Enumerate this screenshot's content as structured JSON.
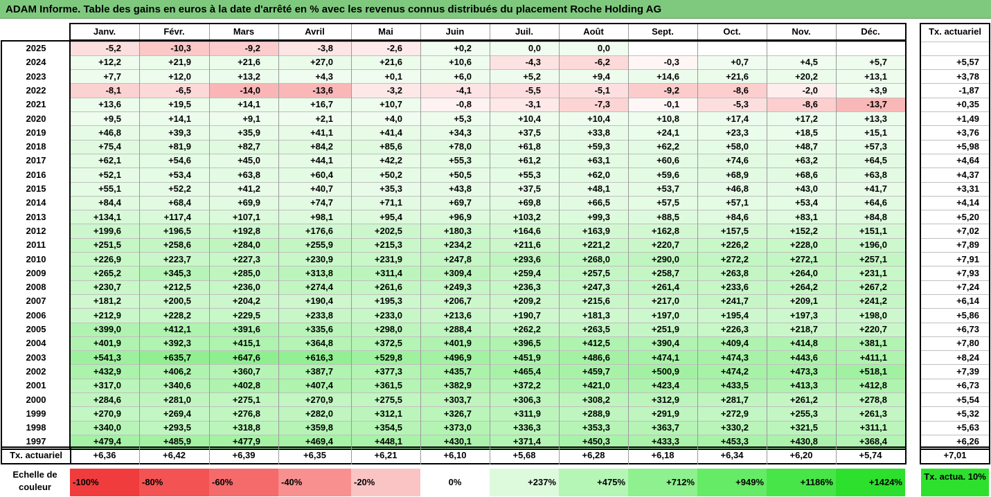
{
  "title": "ADAM Informe. Table des gains en euros à la date d'arrêté en % avec les revenus connus distribués du placement Roche Holding AG",
  "months": [
    "Janv.",
    "Févr.",
    "Mars",
    "Avril",
    "Mai",
    "Juin",
    "Juil.",
    "Août",
    "Sept.",
    "Oct.",
    "Nov.",
    "Déc."
  ],
  "tx_header": "Tx. actuariel",
  "rows": [
    {
      "year": "2025",
      "values": [
        "-5,2",
        "-10,3",
        "-9,2",
        "-3,8",
        "-2,6",
        "+0,2",
        "0,0",
        "0,0",
        "",
        "",
        "",
        ""
      ],
      "tx": ""
    },
    {
      "year": "2024",
      "values": [
        "+12,2",
        "+21,9",
        "+21,6",
        "+27,0",
        "+21,6",
        "+10,6",
        "-4,3",
        "-6,2",
        "-0,3",
        "+0,7",
        "+4,5",
        "+5,7"
      ],
      "tx": "+5,57"
    },
    {
      "year": "2023",
      "values": [
        "+7,7",
        "+12,0",
        "+13,2",
        "+4,3",
        "+0,1",
        "+6,0",
        "+5,2",
        "+9,4",
        "+14,6",
        "+21,6",
        "+20,2",
        "+13,1"
      ],
      "tx": "+3,78"
    },
    {
      "year": "2022",
      "values": [
        "-8,1",
        "-6,5",
        "-14,0",
        "-13,6",
        "-3,2",
        "-4,1",
        "-5,5",
        "-5,1",
        "-9,2",
        "-8,6",
        "-2,0",
        "+3,9"
      ],
      "tx": "-1,87"
    },
    {
      "year": "2021",
      "values": [
        "+13,6",
        "+19,5",
        "+14,1",
        "+16,7",
        "+10,7",
        "-0,8",
        "-3,1",
        "-7,3",
        "-0,1",
        "-5,3",
        "-8,6",
        "-13,7"
      ],
      "tx": "+0,35"
    },
    {
      "year": "2020",
      "values": [
        "+9,5",
        "+14,1",
        "+9,1",
        "+2,1",
        "+4,0",
        "+5,3",
        "+10,4",
        "+10,4",
        "+10,8",
        "+17,4",
        "+17,2",
        "+13,3"
      ],
      "tx": "+1,49"
    },
    {
      "year": "2019",
      "values": [
        "+46,8",
        "+39,3",
        "+35,9",
        "+41,1",
        "+41,4",
        "+34,3",
        "+37,5",
        "+33,8",
        "+24,1",
        "+23,3",
        "+18,5",
        "+15,1"
      ],
      "tx": "+3,76"
    },
    {
      "year": "2018",
      "values": [
        "+75,4",
        "+81,9",
        "+82,7",
        "+84,2",
        "+85,6",
        "+78,0",
        "+61,8",
        "+59,3",
        "+62,2",
        "+58,0",
        "+48,7",
        "+57,3"
      ],
      "tx": "+5,98"
    },
    {
      "year": "2017",
      "values": [
        "+62,1",
        "+54,6",
        "+45,0",
        "+44,1",
        "+42,2",
        "+55,3",
        "+61,2",
        "+63,1",
        "+60,6",
        "+74,6",
        "+63,2",
        "+64,5"
      ],
      "tx": "+4,64"
    },
    {
      "year": "2016",
      "values": [
        "+52,1",
        "+53,4",
        "+63,8",
        "+60,4",
        "+50,2",
        "+50,5",
        "+55,3",
        "+62,0",
        "+59,6",
        "+68,9",
        "+68,6",
        "+63,8"
      ],
      "tx": "+4,37"
    },
    {
      "year": "2015",
      "values": [
        "+55,1",
        "+52,2",
        "+41,2",
        "+40,7",
        "+35,3",
        "+43,8",
        "+37,5",
        "+48,1",
        "+53,7",
        "+46,8",
        "+43,0",
        "+41,7"
      ],
      "tx": "+3,31"
    },
    {
      "year": "2014",
      "values": [
        "+84,4",
        "+68,4",
        "+69,9",
        "+74,7",
        "+71,1",
        "+69,7",
        "+69,8",
        "+66,5",
        "+57,5",
        "+57,1",
        "+53,4",
        "+64,6"
      ],
      "tx": "+4,14"
    },
    {
      "year": "2013",
      "values": [
        "+134,1",
        "+117,4",
        "+107,1",
        "+98,1",
        "+95,4",
        "+96,9",
        "+103,2",
        "+99,3",
        "+88,5",
        "+84,6",
        "+83,1",
        "+84,8"
      ],
      "tx": "+5,20"
    },
    {
      "year": "2012",
      "values": [
        "+199,6",
        "+196,5",
        "+192,8",
        "+176,6",
        "+202,5",
        "+180,3",
        "+164,6",
        "+163,9",
        "+162,8",
        "+157,5",
        "+152,2",
        "+151,1"
      ],
      "tx": "+7,02"
    },
    {
      "year": "2011",
      "values": [
        "+251,5",
        "+258,6",
        "+284,0",
        "+255,9",
        "+215,3",
        "+234,2",
        "+211,6",
        "+221,2",
        "+220,7",
        "+226,2",
        "+228,0",
        "+196,0"
      ],
      "tx": "+7,89"
    },
    {
      "year": "2010",
      "values": [
        "+226,9",
        "+223,7",
        "+227,3",
        "+230,9",
        "+231,9",
        "+247,8",
        "+293,6",
        "+268,0",
        "+290,0",
        "+272,2",
        "+272,1",
        "+257,1"
      ],
      "tx": "+7,91"
    },
    {
      "year": "2009",
      "values": [
        "+265,2",
        "+345,3",
        "+285,0",
        "+313,8",
        "+311,4",
        "+309,4",
        "+259,4",
        "+257,5",
        "+258,7",
        "+263,8",
        "+264,0",
        "+231,1"
      ],
      "tx": "+7,93"
    },
    {
      "year": "2008",
      "values": [
        "+230,7",
        "+212,5",
        "+236,0",
        "+274,4",
        "+261,6",
        "+249,3",
        "+236,3",
        "+247,3",
        "+261,4",
        "+233,6",
        "+264,2",
        "+267,2"
      ],
      "tx": "+7,24"
    },
    {
      "year": "2007",
      "values": [
        "+181,2",
        "+200,5",
        "+204,2",
        "+190,4",
        "+195,3",
        "+206,7",
        "+209,2",
        "+215,6",
        "+217,0",
        "+241,7",
        "+209,1",
        "+241,2"
      ],
      "tx": "+6,14"
    },
    {
      "year": "2006",
      "values": [
        "+212,9",
        "+228,2",
        "+229,5",
        "+233,8",
        "+233,0",
        "+213,6",
        "+190,7",
        "+181,3",
        "+197,0",
        "+195,4",
        "+197,3",
        "+198,0"
      ],
      "tx": "+5,86"
    },
    {
      "year": "2005",
      "values": [
        "+399,0",
        "+412,1",
        "+391,6",
        "+335,6",
        "+298,0",
        "+288,4",
        "+262,2",
        "+263,5",
        "+251,9",
        "+226,3",
        "+218,7",
        "+220,7"
      ],
      "tx": "+6,73"
    },
    {
      "year": "2004",
      "values": [
        "+401,9",
        "+392,3",
        "+415,1",
        "+364,8",
        "+372,5",
        "+401,9",
        "+396,5",
        "+412,5",
        "+390,4",
        "+409,4",
        "+414,8",
        "+381,1"
      ],
      "tx": "+7,80"
    },
    {
      "year": "2003",
      "values": [
        "+541,3",
        "+635,7",
        "+647,6",
        "+616,3",
        "+529,8",
        "+496,9",
        "+451,9",
        "+486,6",
        "+474,1",
        "+474,3",
        "+443,6",
        "+411,1"
      ],
      "tx": "+8,24"
    },
    {
      "year": "2002",
      "values": [
        "+432,9",
        "+406,2",
        "+360,7",
        "+387,7",
        "+377,3",
        "+435,7",
        "+465,4",
        "+459,7",
        "+500,9",
        "+474,2",
        "+473,3",
        "+518,1"
      ],
      "tx": "+7,39"
    },
    {
      "year": "2001",
      "values": [
        "+317,0",
        "+340,6",
        "+402,8",
        "+407,4",
        "+361,5",
        "+382,9",
        "+372,2",
        "+421,0",
        "+423,4",
        "+433,5",
        "+413,3",
        "+412,8"
      ],
      "tx": "+6,73"
    },
    {
      "year": "2000",
      "values": [
        "+284,6",
        "+281,0",
        "+275,1",
        "+270,9",
        "+275,5",
        "+303,7",
        "+306,3",
        "+308,2",
        "+312,9",
        "+281,7",
        "+261,2",
        "+278,8"
      ],
      "tx": "+5,54"
    },
    {
      "year": "1999",
      "values": [
        "+270,9",
        "+269,4",
        "+276,8",
        "+282,0",
        "+312,1",
        "+326,7",
        "+311,9",
        "+288,9",
        "+291,9",
        "+272,9",
        "+255,3",
        "+261,3"
      ],
      "tx": "+5,32"
    },
    {
      "year": "1998",
      "values": [
        "+340,0",
        "+293,5",
        "+318,8",
        "+359,8",
        "+354,5",
        "+373,0",
        "+336,3",
        "+353,3",
        "+363,7",
        "+330,2",
        "+321,5",
        "+311,1"
      ],
      "tx": "+5,63"
    },
    {
      "year": "1997",
      "values": [
        "+479,4",
        "+485,9",
        "+477,9",
        "+469,4",
        "+448,1",
        "+430,1",
        "+371,4",
        "+450,3",
        "+433,3",
        "+453,3",
        "+430,8",
        "+368,4"
      ],
      "tx": "+6,26"
    }
  ],
  "tx_row": {
    "label": "Tx. actuariel",
    "values": [
      "+6,36",
      "+6,42",
      "+6,39",
      "+6,35",
      "+6,21",
      "+6,10",
      "+5,68",
      "+6,28",
      "+6,18",
      "+6,34",
      "+6,20",
      "+5,74"
    ],
    "total": "+7,01"
  },
  "legend": {
    "label": "Echelle de couleur",
    "items": [
      {
        "text": "-100%",
        "color": "#f03c3c",
        "align": "left"
      },
      {
        "text": "-80%",
        "color": "#f35353",
        "align": "left"
      },
      {
        "text": "-60%",
        "color": "#f56a6a",
        "align": "left"
      },
      {
        "text": "-40%",
        "color": "#f89090",
        "align": "left"
      },
      {
        "text": "-20%",
        "color": "#fbc4c4",
        "align": "left"
      },
      {
        "text": "0%",
        "color": "#ffffff",
        "align": "center"
      },
      {
        "text": "+237%",
        "color": "#ddfadd",
        "align": "right"
      },
      {
        "text": "+475%",
        "color": "#b5f5b5",
        "align": "right"
      },
      {
        "text": "+712%",
        "color": "#8ef08e",
        "align": "right"
      },
      {
        "text": "+949%",
        "color": "#66eb66",
        "align": "right"
      },
      {
        "text": "+1186%",
        "color": "#47e547",
        "align": "right"
      },
      {
        "text": "+1424%",
        "color": "#2de02d",
        "align": "right"
      }
    ],
    "tx_text": "Tx. actua. 10%",
    "tx_color": "#2ee02e"
  },
  "colors": {
    "title_bg": "#7fc97f",
    "positive_max": "#2de02d",
    "negative_max": "#f03c3c"
  }
}
